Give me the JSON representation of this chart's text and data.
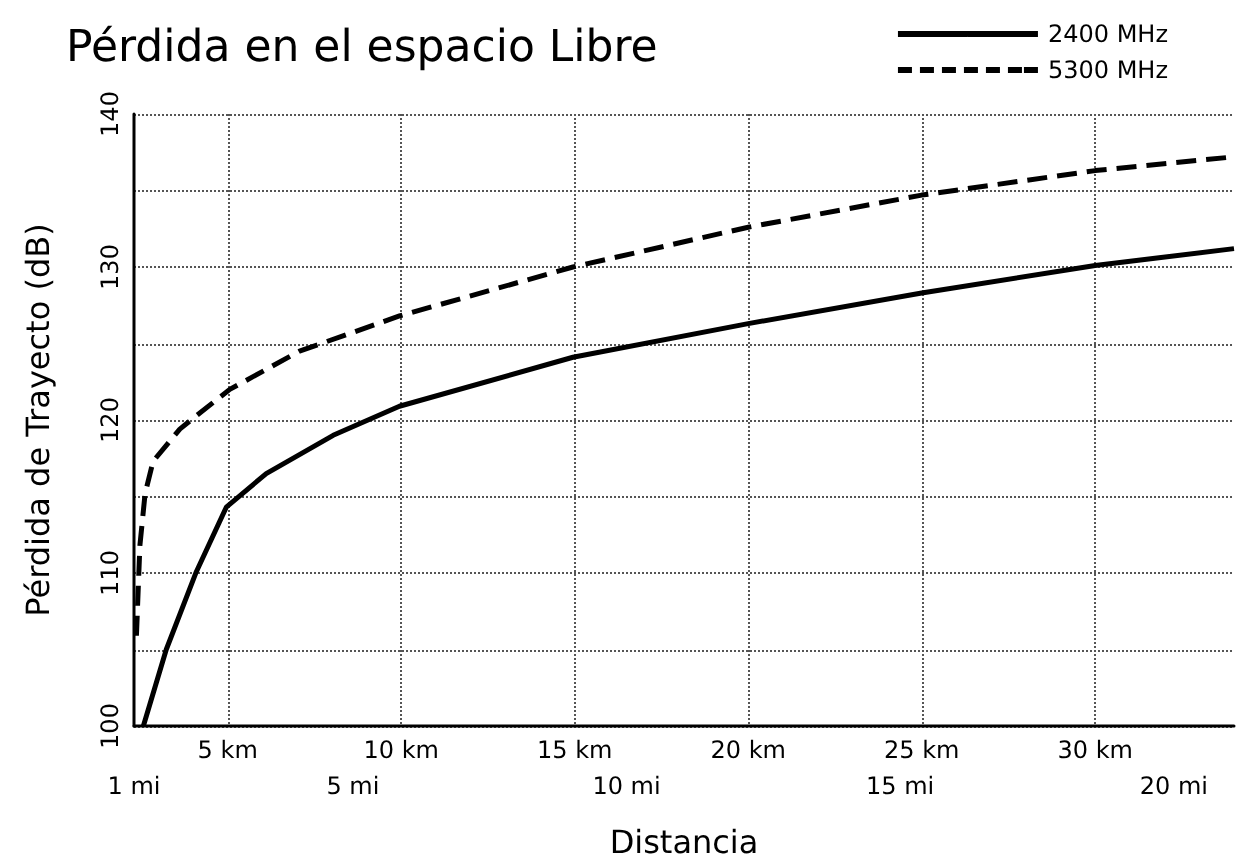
{
  "chart_data": {
    "type": "line",
    "title": "Pérdida en el espacio Libre",
    "xlabel": "Distancia",
    "ylabel": "Pérdida de Trayecto (dB)",
    "xlim": [
      2.3,
      34
    ],
    "xticks": [
      {
        "value": 5,
        "label": "5 km"
      },
      {
        "value": 10,
        "label": "10 km"
      },
      {
        "value": 15,
        "label": "15 km"
      },
      {
        "value": 20,
        "label": "20 km"
      },
      {
        "value": 25,
        "label": "25 km"
      },
      {
        "value": 30,
        "label": "30 km"
      }
    ],
    "x2lim": [
      1,
      21.1
    ],
    "x2ticks": [
      {
        "value": 1,
        "label": "1 mi"
      },
      {
        "value": 5,
        "label": "5 mi"
      },
      {
        "value": 10,
        "label": "10 mi"
      },
      {
        "value": 15,
        "label": "15 mi"
      },
      {
        "value": 20,
        "label": "20 mi"
      }
    ],
    "ylim": [
      100,
      140
    ],
    "yticks": [
      100,
      {
        "value": 105,
        "label": null
      },
      110,
      {
        "value": 115,
        "label": null
      },
      120,
      {
        "value": 125,
        "label": null
      },
      130,
      {
        "value": 135,
        "label": null
      },
      140
    ],
    "grid": true,
    "legend": "top right",
    "marker": "none",
    "series": [
      {
        "name": "2400 MHz",
        "color": "#000000",
        "line_style": "solid",
        "x": [
          2.57,
          3.23,
          4.1,
          4.96,
          6.11,
          8.04,
          9.95,
          14.95,
          20,
          25,
          30,
          34
        ],
        "values": [
          100,
          105,
          110.1,
          114.3,
          116.5,
          119,
          120.9,
          124.1,
          126.3,
          128.3,
          130.1,
          131.2
        ]
      },
      {
        "name": "5300 MHz",
        "color": "#000000",
        "line_style": "dashed",
        "x": [
          2.37,
          2.47,
          2.62,
          2.85,
          3.62,
          4,
          5.06,
          7.07,
          9.95,
          14.95,
          20,
          25,
          30,
          34
        ],
        "values": [
          105.9,
          111.8,
          115.2,
          117.3,
          119.4,
          120.1,
          122,
          124.5,
          126.8,
          130,
          132.6,
          134.7,
          136.3,
          137.2
        ]
      }
    ]
  }
}
